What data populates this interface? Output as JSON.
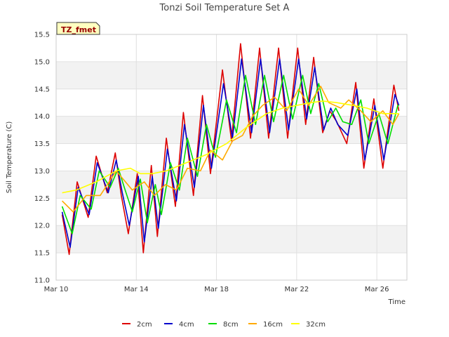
{
  "chart_data": {
    "type": "line",
    "title": "Tonzi Soil Temperature Set A",
    "xlabel": "Time",
    "ylabel": "Soil Temperature (C)",
    "badge": "TZ_fmet",
    "xlim": [
      0,
      17.5
    ],
    "ylim": [
      11.0,
      15.5
    ],
    "x_ticks": [
      {
        "value": 0,
        "label": "Mar 10"
      },
      {
        "value": 4,
        "label": "Mar 14"
      },
      {
        "value": 8,
        "label": "Mar 18"
      },
      {
        "value": 12,
        "label": "Mar 22"
      },
      {
        "value": 16,
        "label": "Mar 26"
      }
    ],
    "y_ticks": [
      11.0,
      11.5,
      12.0,
      12.5,
      13.0,
      13.5,
      14.0,
      14.5,
      15.0,
      15.5
    ],
    "grid": true,
    "legend": "bottom",
    "series": [
      {
        "name": "2cm",
        "color": "#dd0000",
        "x": [
          0.3,
          0.65,
          1.05,
          1.6,
          2.0,
          2.55,
          2.95,
          3.25,
          3.6,
          4.05,
          4.35,
          4.75,
          5.05,
          5.5,
          5.95,
          6.35,
          6.85,
          7.3,
          7.7,
          8.3,
          8.75,
          9.2,
          9.7,
          10.15,
          10.6,
          11.1,
          11.55,
          12.05,
          12.45,
          12.85,
          13.3,
          13.65,
          14.0,
          14.5,
          14.95,
          15.35,
          15.85,
          16.3,
          16.85,
          17.1
        ],
        "y": [
          12.2,
          11.47,
          12.8,
          12.15,
          13.27,
          12.6,
          13.33,
          12.55,
          11.85,
          12.95,
          11.5,
          13.1,
          11.8,
          13.6,
          12.35,
          14.07,
          12.55,
          14.38,
          12.95,
          14.85,
          13.55,
          15.33,
          13.6,
          15.25,
          13.6,
          15.25,
          13.6,
          15.25,
          13.85,
          15.08,
          13.7,
          14.1,
          13.9,
          13.5,
          14.62,
          13.05,
          14.32,
          13.05,
          14.57,
          14.1
        ]
      },
      {
        "name": "4cm",
        "color": "#0000cc",
        "x": [
          0.3,
          0.7,
          1.1,
          1.65,
          2.05,
          2.6,
          3.0,
          3.3,
          3.65,
          4.1,
          4.4,
          4.8,
          5.1,
          5.55,
          6.0,
          6.4,
          6.9,
          7.35,
          7.75,
          8.35,
          8.8,
          9.25,
          9.75,
          10.2,
          10.65,
          11.15,
          11.6,
          12.1,
          12.5,
          12.9,
          13.35,
          13.7,
          14.05,
          14.55,
          15.0,
          15.4,
          15.9,
          16.35,
          16.9,
          17.1
        ],
        "y": [
          12.25,
          11.6,
          12.7,
          12.2,
          13.15,
          12.6,
          13.2,
          12.6,
          12.0,
          12.9,
          11.7,
          12.9,
          11.95,
          13.4,
          12.45,
          13.85,
          12.7,
          14.2,
          13.05,
          14.6,
          13.6,
          15.05,
          13.7,
          15.05,
          13.7,
          15.05,
          13.75,
          15.05,
          13.95,
          14.9,
          13.75,
          14.15,
          13.85,
          13.65,
          14.5,
          13.2,
          14.2,
          13.2,
          14.4,
          14.2
        ]
      },
      {
        "name": "8cm",
        "color": "#00dd00",
        "x": [
          0.3,
          0.8,
          1.2,
          1.75,
          2.15,
          2.7,
          3.1,
          3.4,
          3.8,
          4.2,
          4.55,
          4.95,
          5.25,
          5.7,
          6.15,
          6.55,
          7.05,
          7.5,
          7.95,
          8.5,
          9.0,
          9.45,
          9.95,
          10.4,
          10.85,
          11.35,
          11.8,
          12.3,
          12.7,
          13.1,
          13.55,
          13.95,
          14.3,
          14.75,
          15.2,
          15.6,
          16.1,
          16.55,
          17.05,
          17.1
        ],
        "y": [
          12.35,
          11.85,
          12.55,
          12.3,
          13.0,
          12.7,
          13.05,
          12.7,
          12.25,
          12.85,
          12.05,
          12.75,
          12.2,
          13.15,
          12.65,
          13.6,
          12.9,
          13.85,
          13.25,
          14.3,
          13.7,
          14.75,
          13.85,
          14.75,
          13.9,
          14.75,
          13.95,
          14.75,
          14.05,
          14.6,
          13.9,
          14.15,
          13.9,
          13.85,
          14.3,
          13.5,
          14.05,
          13.5,
          14.2,
          14.2
        ]
      },
      {
        "name": "16cm",
        "color": "#ffaa00",
        "x": [
          0.3,
          0.85,
          1.5,
          2.2,
          3.0,
          3.8,
          4.4,
          4.9,
          5.45,
          6.0,
          6.55,
          7.2,
          7.7,
          8.3,
          8.8,
          9.3,
          9.8,
          10.3,
          10.9,
          11.5,
          12.1,
          12.6,
          13.2,
          13.6,
          14.2,
          14.6,
          15.2,
          15.7,
          16.3,
          16.8,
          17.1
        ],
        "y": [
          12.45,
          12.25,
          12.55,
          12.55,
          13.0,
          12.65,
          12.8,
          12.55,
          12.75,
          12.65,
          13.05,
          13.0,
          13.38,
          13.2,
          13.55,
          13.65,
          14.0,
          14.2,
          14.35,
          14.1,
          14.5,
          14.2,
          14.55,
          14.25,
          14.15,
          14.3,
          14.1,
          13.9,
          14.1,
          13.85,
          14.05
        ]
      },
      {
        "name": "32cm",
        "color": "#ffff00",
        "x": [
          0.3,
          1.0,
          2.0,
          3.0,
          3.7,
          4.2,
          4.8,
          5.5,
          6.5,
          7.5,
          8.5,
          9.5,
          10.5,
          11.3,
          12.0,
          12.7,
          13.3,
          14.0,
          14.8,
          15.5,
          16.3,
          17.1
        ],
        "y": [
          12.6,
          12.65,
          12.8,
          13.0,
          13.05,
          12.95,
          12.95,
          13.0,
          13.15,
          13.3,
          13.5,
          13.8,
          14.05,
          14.15,
          14.2,
          14.25,
          14.28,
          14.25,
          14.2,
          14.15,
          14.05,
          14.05
        ]
      }
    ]
  }
}
